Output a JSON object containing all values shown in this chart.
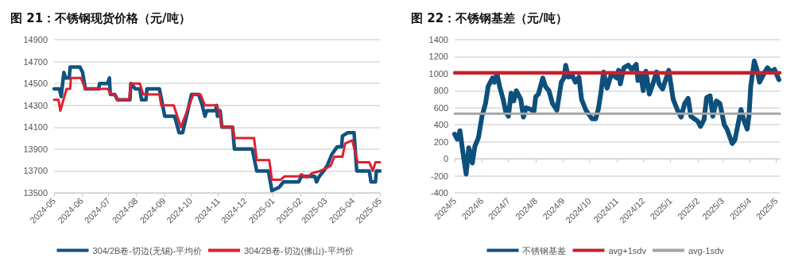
{
  "chart_data": [
    {
      "type": "line",
      "title": "图 21：不锈钢现货价格（元/吨）",
      "xlim": [
        "2024-05-01",
        "2025-05-01"
      ],
      "xticks": [
        {
          "value": "2024-05-01",
          "label": "2024-05"
        },
        {
          "value": "2024-06-01",
          "label": "2024-06"
        },
        {
          "value": "2024-07-01",
          "label": "2024-07"
        },
        {
          "value": "2024-08-01",
          "label": "2024-08"
        },
        {
          "value": "2024-09-01",
          "label": "2024-09"
        },
        {
          "value": "2024-10-01",
          "label": "2024-10"
        },
        {
          "value": "2024-11-01",
          "label": "2024-11"
        },
        {
          "value": "2024-12-01",
          "label": "2024-12"
        },
        {
          "value": "2025-01-01",
          "label": "2025-01"
        },
        {
          "value": "2025-02-01",
          "label": "2025-02"
        },
        {
          "value": "2025-03-01",
          "label": "2025-03"
        },
        {
          "value": "2025-04-01",
          "label": "2025-04"
        },
        {
          "value": "2025-05-01",
          "label": "2025-05"
        }
      ],
      "ylim": [
        13500,
        14900
      ],
      "yticks": [
        13500,
        13700,
        13900,
        14100,
        14300,
        14500,
        14700,
        14900
      ],
      "grid": "y",
      "legend": "bottom",
      "marker": "none",
      "line_style": "solid",
      "series": [
        {
          "name": "304/2B卷-切边(无锡)-平均价",
          "color": "#13527e",
          "x": [
            "2024-05-01",
            "2024-05-07",
            "2024-05-09",
            "2024-05-12",
            "2024-05-14",
            "2024-05-18",
            "2024-05-19",
            "2024-05-30",
            "2024-06-02",
            "2024-06-05",
            "2024-06-20",
            "2024-06-21",
            "2024-06-30",
            "2024-07-02",
            "2024-07-03",
            "2024-07-08",
            "2024-07-11",
            "2024-07-25",
            "2024-07-26",
            "2024-07-31",
            "2024-08-05",
            "2024-08-07",
            "2024-08-12",
            "2024-08-13",
            "2024-08-27",
            "2024-09-02",
            "2024-09-13",
            "2024-09-18",
            "2024-09-22",
            "2024-10-02",
            "2024-10-10",
            "2024-10-14",
            "2024-10-17",
            "2024-10-19",
            "2024-10-29",
            "2024-10-30",
            "2024-10-31",
            "2024-11-03",
            "2024-11-05",
            "2024-11-17",
            "2024-11-19",
            "2024-12-09",
            "2024-12-14",
            "2024-12-27",
            "2024-12-31",
            "2025-01-08",
            "2025-01-13",
            "2025-01-30",
            "2025-02-02",
            "2025-02-17",
            "2025-02-19",
            "2025-02-22",
            "2025-02-27",
            "2025-03-03",
            "2025-03-08",
            "2025-03-14",
            "2025-03-19",
            "2025-03-20",
            "2025-03-26",
            "2025-04-02",
            "2025-04-05",
            "2025-04-19",
            "2025-04-21",
            "2025-04-26",
            "2025-04-27",
            "2025-05-01"
          ],
          "values": [
            14450,
            14450,
            14380,
            14600,
            14550,
            14550,
            14650,
            14650,
            14600,
            14450,
            14450,
            14500,
            14500,
            14550,
            14400,
            14400,
            14350,
            14350,
            14500,
            14450,
            14450,
            14350,
            14350,
            14450,
            14450,
            14200,
            14200,
            14050,
            14050,
            14400,
            14400,
            14300,
            14200,
            14250,
            14250,
            14300,
            14200,
            14250,
            14100,
            14100,
            13900,
            13900,
            13700,
            13700,
            13520,
            13550,
            13600,
            13600,
            13650,
            13650,
            13600,
            13650,
            13700,
            13750,
            13850,
            13920,
            13920,
            14020,
            14050,
            14050,
            13700,
            13700,
            13600,
            13600,
            13700,
            13700
          ]
        },
        {
          "name": "304/2B卷-切边(佛山)-平均价",
          "color": "#e0202e",
          "x": [
            "2024-05-01",
            "2024-05-06",
            "2024-05-08",
            "2024-05-15",
            "2024-05-19",
            "2024-05-20",
            "2024-05-31",
            "2024-06-05",
            "2024-06-30",
            "2024-07-04",
            "2024-07-08",
            "2024-07-11",
            "2024-07-24",
            "2024-07-26",
            "2024-08-05",
            "2024-08-09",
            "2024-08-27",
            "2024-08-29",
            "2024-09-12",
            "2024-09-20",
            "2024-10-04",
            "2024-10-12",
            "2024-10-17",
            "2024-10-30",
            "2024-11-02",
            "2024-11-05",
            "2024-11-17",
            "2024-11-19",
            "2024-12-11",
            "2024-12-14",
            "2024-12-28",
            "2024-12-31",
            "2025-01-10",
            "2025-01-14",
            "2025-01-30",
            "2025-02-02",
            "2025-02-08",
            "2025-02-14",
            "2025-02-23",
            "2025-03-01",
            "2025-03-07",
            "2025-03-11",
            "2025-03-20",
            "2025-03-23",
            "2025-03-31",
            "2025-04-06",
            "2025-04-19",
            "2025-04-23",
            "2025-04-26",
            "2025-05-01"
          ],
          "values": [
            14350,
            14350,
            14250,
            14450,
            14450,
            14550,
            14550,
            14450,
            14450,
            14400,
            14400,
            14350,
            14350,
            14500,
            14500,
            14400,
            14400,
            14300,
            14300,
            14100,
            14400,
            14400,
            14300,
            14300,
            14250,
            14100,
            14100,
            14000,
            14000,
            13800,
            13800,
            13620,
            13620,
            13650,
            13650,
            13670,
            13640,
            13680,
            13700,
            13720,
            13750,
            13830,
            13830,
            13950,
            13980,
            13780,
            13780,
            13700,
            13780,
            13780
          ]
        }
      ]
    },
    {
      "type": "line",
      "title": "图 22：不锈钢基差（元/吨）",
      "xlim": [
        "2024-05-01",
        "2025-05-05"
      ],
      "xticks": [
        {
          "value": "2024-05-01",
          "label": "2024/5"
        },
        {
          "value": "2024-06-01",
          "label": "2024/6"
        },
        {
          "value": "2024-07-01",
          "label": "2024/7"
        },
        {
          "value": "2024-08-01",
          "label": "2024/8"
        },
        {
          "value": "2024-09-01",
          "label": "2024/9"
        },
        {
          "value": "2024-10-01",
          "label": "2024/10"
        },
        {
          "value": "2024-11-01",
          "label": "2024/11"
        },
        {
          "value": "2024-12-01",
          "label": "2024/12"
        },
        {
          "value": "2025-01-01",
          "label": "2025/1"
        },
        {
          "value": "2025-02-01",
          "label": "2025/2"
        },
        {
          "value": "2025-03-01",
          "label": "2025/3"
        },
        {
          "value": "2025-04-01",
          "label": "2025/4"
        },
        {
          "value": "2025-05-01",
          "label": "2025/5"
        }
      ],
      "ylim": [
        -400,
        1400
      ],
      "yticks": [
        -400,
        -200,
        0,
        200,
        400,
        600,
        800,
        1000,
        1200,
        1400
      ],
      "grid": "y",
      "legend": "bottom",
      "marker": "none",
      "line_style": "solid",
      "series": [
        {
          "name": "不锈钢基差",
          "color": "#0e4f7c",
          "x": [
            "2024-05-01",
            "2024-05-04",
            "2024-05-07",
            "2024-05-10",
            "2024-05-14",
            "2024-05-17",
            "2024-05-19",
            "2024-05-21",
            "2024-05-24",
            "2024-05-28",
            "2024-06-01",
            "2024-06-05",
            "2024-06-08",
            "2024-06-13",
            "2024-06-15",
            "2024-06-18",
            "2024-06-21",
            "2024-06-25",
            "2024-06-28",
            "2024-07-01",
            "2024-07-04",
            "2024-07-07",
            "2024-07-10",
            "2024-07-15",
            "2024-07-18",
            "2024-07-21",
            "2024-07-26",
            "2024-07-30",
            "2024-08-01",
            "2024-08-04",
            "2024-08-09",
            "2024-08-12",
            "2024-08-16",
            "2024-08-20",
            "2024-08-25",
            "2024-08-30",
            "2024-09-02",
            "2024-09-04",
            "2024-09-07",
            "2024-09-12",
            "2024-09-15",
            "2024-09-19",
            "2024-09-22",
            "2024-09-27",
            "2024-10-04",
            "2024-10-08",
            "2024-10-11",
            "2024-10-14",
            "2024-10-17",
            "2024-10-21",
            "2024-10-26",
            "2024-11-01",
            "2024-11-03",
            "2024-11-05",
            "2024-11-09",
            "2024-11-14",
            "2024-11-18",
            "2024-11-23",
            "2024-11-25",
            "2024-11-28",
            "2024-12-01",
            "2024-12-04",
            "2024-12-08",
            "2024-12-12",
            "2024-12-16",
            "2024-12-19",
            "2024-12-23",
            "2024-12-30",
            "2025-01-04",
            "2025-01-09",
            "2025-01-13",
            "2025-01-17",
            "2025-01-21",
            "2025-01-24",
            "2025-02-01",
            "2025-02-04",
            "2025-02-08",
            "2025-02-11",
            "2025-02-15",
            "2025-02-18",
            "2025-02-22",
            "2025-02-26",
            "2025-03-03",
            "2025-03-06",
            "2025-03-12",
            "2025-03-15",
            "2025-03-22",
            "2025-03-25",
            "2025-03-29",
            "2025-03-31",
            "2025-04-02",
            "2025-04-06",
            "2025-04-09",
            "2025-04-12",
            "2025-04-17",
            "2025-04-21",
            "2025-04-25",
            "2025-04-29",
            "2025-05-04"
          ],
          "values": [
            290,
            230,
            330,
            100,
            -180,
            130,
            50,
            -50,
            150,
            250,
            500,
            650,
            850,
            950,
            900,
            1000,
            850,
            700,
            550,
            500,
            770,
            680,
            800,
            700,
            490,
            600,
            580,
            560,
            730,
            760,
            950,
            850,
            800,
            650,
            570,
            900,
            950,
            1100,
            960,
            970,
            900,
            960,
            700,
            570,
            470,
            470,
            580,
            780,
            1020,
            830,
            1000,
            950,
            1040,
            880,
            1070,
            1100,
            1050,
            1110,
            920,
            1000,
            800,
            1030,
            760,
            880,
            1020,
            880,
            820,
            1040,
            700,
            570,
            490,
            650,
            710,
            500,
            440,
            380,
            460,
            720,
            740,
            500,
            680,
            650,
            400,
            350,
            180,
            220,
            580,
            460,
            350,
            500,
            850,
            1150,
            1050,
            900,
            1000,
            1070,
            1020,
            1050,
            930
          ]
        },
        {
          "name": "avg+1sdv",
          "color": "#c8202c",
          "x": [
            "2024-05-01",
            "2025-05-05"
          ],
          "values": [
            1010,
            1010
          ]
        },
        {
          "name": "avg-1sdv",
          "color": "#a6a6a6",
          "x": [
            "2024-05-01",
            "2025-05-05"
          ],
          "values": [
            530,
            530
          ]
        }
      ]
    }
  ]
}
